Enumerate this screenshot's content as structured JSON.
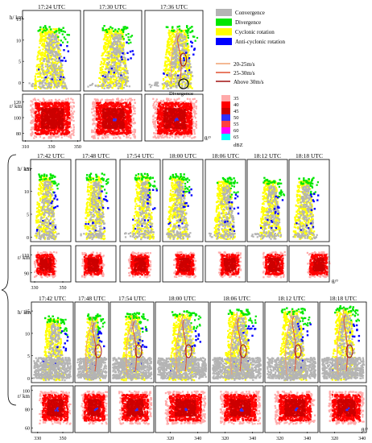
{
  "colors": {
    "convergence": "#b4b4b4",
    "divergence": "#00e600",
    "cyclonic": "#ffff00",
    "anticyclonic": "#0000ff",
    "ref": [
      "#ffaaaa",
      "#ff0000",
      "#cc0000",
      "#ff4040",
      "#3030ff",
      "#ff00ff",
      "#00ffff"
    ],
    "wind1": "#f0a070",
    "wind2": "#e05030",
    "wind3": "#a01010"
  },
  "legend": {
    "convergence": "Convergence",
    "divergence": "Divergence",
    "cyclonic": "Cyclonic rotation",
    "anticyclonic": "Anti-cyclonic rotation",
    "wind1": "20-25m/s",
    "wind2": "25-30m/s",
    "wind3": "Above 30m/s",
    "divergence_annotation": "Divergence",
    "dbz_label": "dBZ",
    "dbz_values": [
      "35",
      "40",
      "45",
      "50",
      "55",
      "60",
      "65"
    ]
  },
  "labels": {
    "h_axis": "h/ km",
    "r_axis": "r/ km",
    "theta": "θ/°"
  },
  "row1": {
    "times": [
      "17:24 UTC",
      "17:30 UTC",
      "17:36 UTC"
    ],
    "h_ticks": [
      "0",
      "5",
      "10",
      "15"
    ],
    "r_ticks": [
      "80",
      "100",
      "120"
    ],
    "theta_ticks": [
      "310",
      "330",
      "350"
    ]
  },
  "row2": {
    "times": [
      "17:42 UTC",
      "17:48 UTC",
      "17:54 UTC",
      "18:00 UTC",
      "18:06 UTC",
      "18:12 UTC",
      "18:18 UTC"
    ],
    "h_ticks": [
      "0",
      "5",
      "10",
      "15"
    ],
    "r_ticks": [
      "90",
      "110"
    ],
    "theta_ticks": [
      "330",
      "350"
    ]
  },
  "row3": {
    "times": [
      "17:42 UTC",
      "17:48 UTC",
      "17:54 UTC",
      "18:00 UTC",
      "18:06 UTC",
      "18:12 UTC",
      "18:18 UTC"
    ],
    "h_ticks": [
      "0",
      "5",
      "10",
      "15"
    ],
    "r_ticks": [
      "60",
      "80",
      "100"
    ],
    "theta_ticks_a": [
      "330",
      "350"
    ],
    "theta_ticks_b": [
      "320",
      "340"
    ]
  }
}
